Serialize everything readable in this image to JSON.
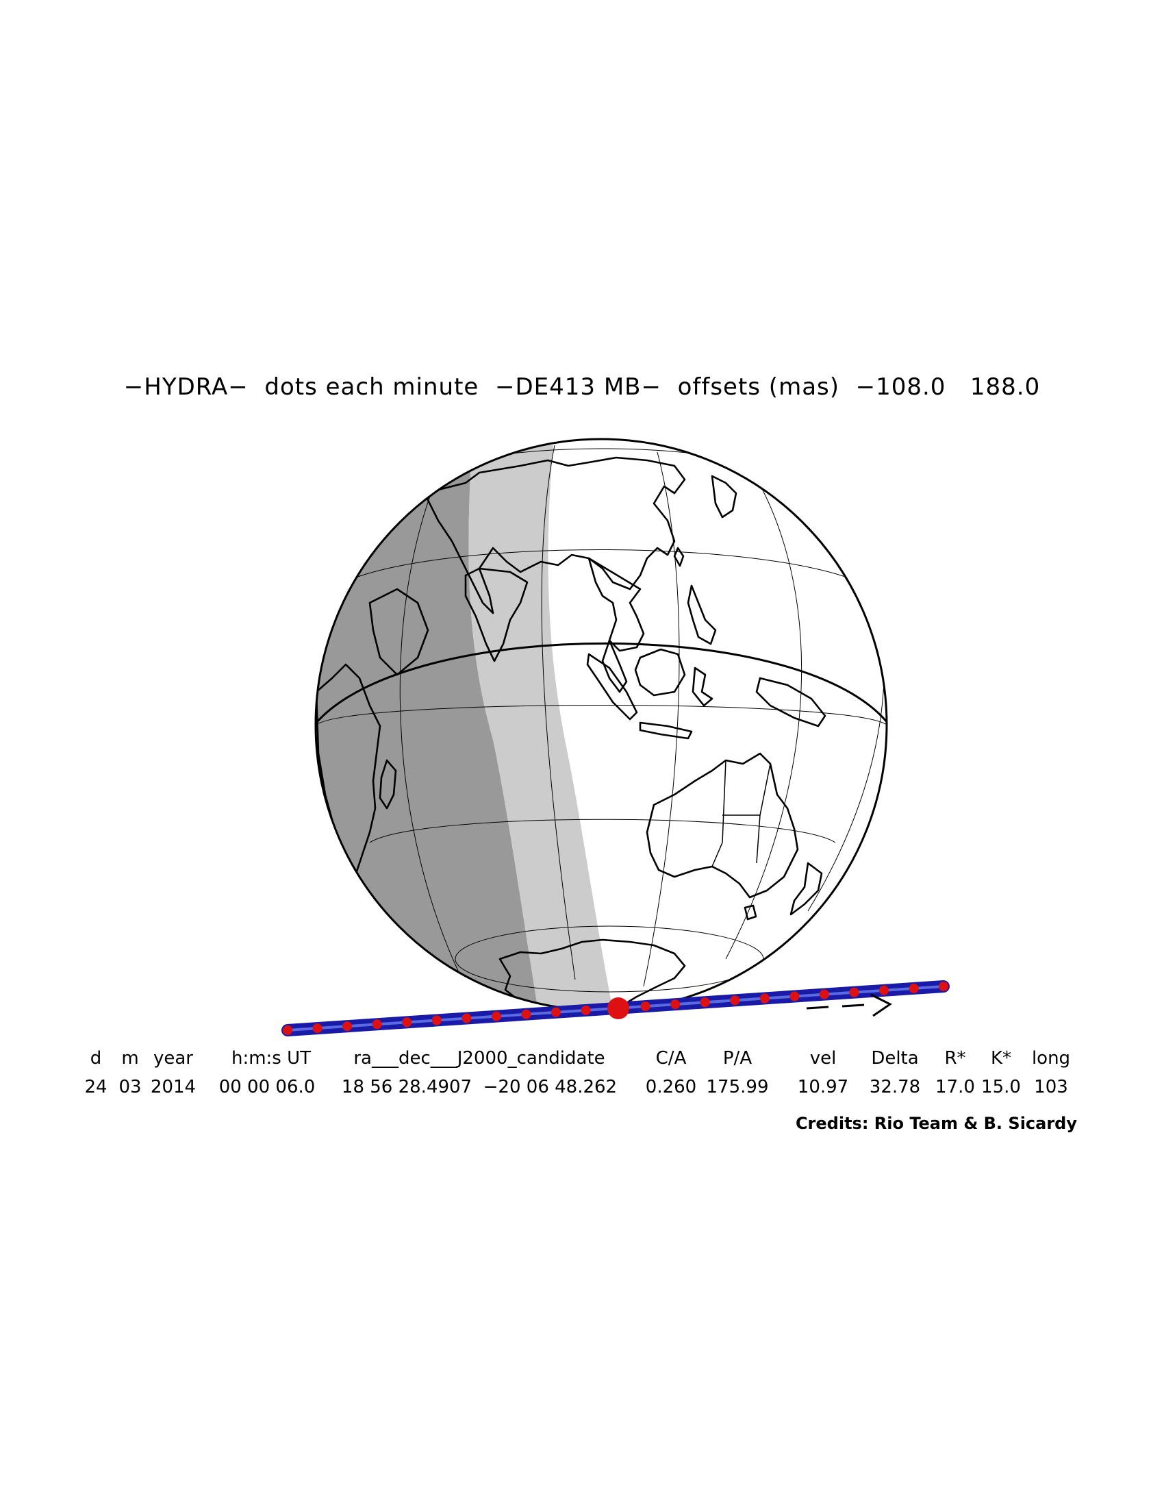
{
  "title": "−HYDRA−  dots each minute  −DE413 MB−  offsets (mas)  −108.0   188.0",
  "table": {
    "headers": [
      "d",
      "m",
      "year",
      "h:m:s UT",
      "ra___dec___J2000_candidate",
      "C/A",
      "P/A",
      "vel",
      "Delta",
      "R*",
      "K*",
      "long"
    ],
    "values": [
      "24",
      "03",
      "2014",
      "00 00 06.0",
      "18 56 28.4907  −20 06 48.262",
      "0.260",
      "175.99",
      "10.97",
      "32.78",
      "17.0",
      "15.0",
      "103"
    ]
  },
  "direction_arrow": "— — >",
  "credits": "Credits: Rio Team & B. Sicardy",
  "colors": {
    "night": "#999999",
    "twilight": "#cccccc",
    "day": "#ffffff",
    "track": "#2222cc",
    "dots": "#dd1111",
    "outline": "#000000"
  }
}
